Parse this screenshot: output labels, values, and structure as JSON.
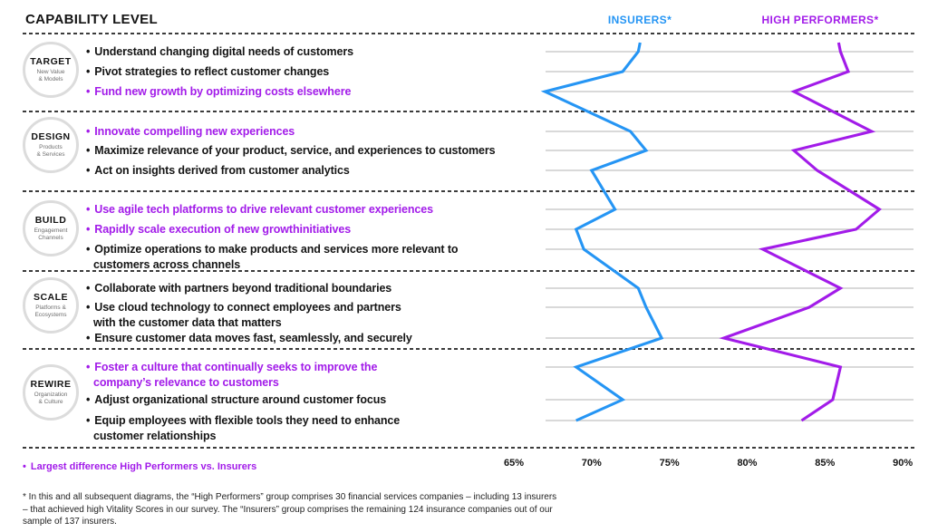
{
  "title": "CAPABILITY LEVEL",
  "series_labels": {
    "insurers": "INSURERS*",
    "high_performers": "HIGH PERFORMERS*"
  },
  "legend": "Largest difference High Performers vs. Insurers",
  "footnote_lines": [
    "* In this and all subsequent diagrams, the “High Performers” group comprises 30 financial services companies – including 13 insurers",
    "– that achieved high Vitality Scores in our survey. The “Insurers” group comprises the remaining 124 insurance companies out of our",
    "sample of 137 insurers."
  ],
  "colors": {
    "insurers": "#2595f4",
    "high_performers": "#a21be9",
    "accent_text": "#a21be9",
    "grid_line": "#c2c2c2",
    "separator": "#3b3b3b",
    "text": "#141414",
    "circle_ring": "#dcdcdc",
    "circle_sublabel": "#6f6f6f"
  },
  "sections": [
    {
      "level": "TARGET",
      "sublabel": [
        "New Value",
        "& Models"
      ],
      "bullets": [
        {
          "accent": false,
          "lines": [
            "Understand changing digital needs of customers"
          ]
        },
        {
          "accent": false,
          "lines": [
            "Pivot strategies to reflect customer changes"
          ]
        },
        {
          "accent": true,
          "lines": [
            "Fund new growth by optimizing costs elsewhere"
          ]
        }
      ]
    },
    {
      "level": "DESIGN",
      "sublabel": [
        "Products",
        "& Services"
      ],
      "bullets": [
        {
          "accent": true,
          "lines": [
            "Innovate compelling new experiences"
          ]
        },
        {
          "accent": false,
          "lines": [
            "Maximize relevance of your product, service, and experiences to customers"
          ]
        },
        {
          "accent": false,
          "lines": [
            "Act on insights derived from customer analytics"
          ]
        }
      ]
    },
    {
      "level": "BUILD",
      "sublabel": [
        "Engagement",
        "Channels"
      ],
      "bullets": [
        {
          "accent": true,
          "lines": [
            "Use agile tech platforms to drive relevant customer experiences"
          ]
        },
        {
          "accent": true,
          "lines": [
            "Rapidly scale execution of new growthinitiatives"
          ]
        },
        {
          "accent": false,
          "lines": [
            "Optimize operations to make products and services more relevant to",
            "customers across channels"
          ]
        }
      ]
    },
    {
      "level": "SCALE",
      "sublabel": [
        "Platforms &",
        "Ecosystems"
      ],
      "bullets": [
        {
          "accent": false,
          "lines": [
            "Collaborate with partners beyond traditional boundaries"
          ]
        },
        {
          "accent": false,
          "lines": [
            "Use cloud technology to connect employees and partners",
            "with the customer data that matters"
          ]
        },
        {
          "accent": false,
          "lines": [
            "Ensure customer data moves fast, seamlessly, and securely"
          ]
        }
      ]
    },
    {
      "level": "REWIRE",
      "sublabel": [
        "Organization",
        "& Culture"
      ],
      "bullets": [
        {
          "accent": true,
          "lines": [
            "Foster a culture that continually seeks to improve the",
            "company’s relevance to customers"
          ]
        },
        {
          "accent": false,
          "lines": [
            "Adjust organizational structure around customer focus"
          ]
        },
        {
          "accent": false,
          "lines": [
            "Equip employees with flexible tools they need to enhance",
            "customer relationships"
          ]
        }
      ]
    }
  ],
  "chart_data": {
    "type": "line",
    "orientation": "vertical_profile",
    "title": "Capability level scores: Insurers vs. High Performers",
    "x_axis": {
      "range": [
        65,
        90
      ],
      "ticks": [
        65,
        70,
        75,
        80,
        85,
        90
      ],
      "tick_labels": [
        "65%",
        "70%",
        "75%",
        "80%",
        "85%",
        "90%"
      ],
      "unit": "%"
    },
    "grid": true,
    "rows": [
      "Understand changing digital needs of customers",
      "Pivot strategies to reflect customer changes",
      "Fund new growth by optimizing costs elsewhere",
      "Innovate compelling new experiences",
      "Maximize relevance of your product, service, and experiences to customers",
      "Act on insights derived from customer analytics",
      "Use agile tech platforms to drive relevant customer experiences",
      "Rapidly scale execution of new growthinitiatives",
      "Optimize operations to make products and services more relevant to customers across channels",
      "Collaborate with partners beyond traditional boundaries",
      "Use cloud technology to connect employees and partners with the customer data that matters",
      "Ensure customer data moves fast, seamlessly, and securely",
      "Foster a culture that continually seeks to improve the company’s relevance to customers",
      "Adjust organizational structure around customer focus",
      "Equip employees with flexible tools they need to enhance customer relationships"
    ],
    "series": [
      {
        "name": "Insurers",
        "color": "#2595f4",
        "values": [
          73,
          72,
          67,
          72.5,
          73.5,
          70,
          71.5,
          69,
          69.5,
          73,
          73.5,
          74.5,
          69,
          72,
          69
        ]
      },
      {
        "name": "High Performers",
        "color": "#a21be9",
        "values": [
          86,
          86.5,
          83,
          88,
          83,
          84.5,
          88.5,
          87,
          81,
          86,
          84,
          78.5,
          86,
          85.5,
          83.5
        ]
      }
    ],
    "legend_position": "top"
  }
}
